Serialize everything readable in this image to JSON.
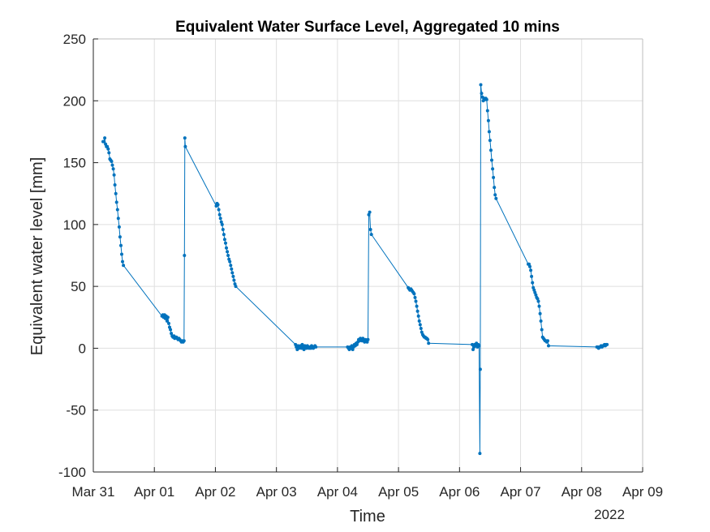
{
  "chart_data": {
    "type": "line",
    "title": "Equivalent Water Surface Level, Aggregated 10 mins",
    "xlabel": "Time",
    "ylabel": "Equivalent water level [mm]",
    "year_label": "2022",
    "xlim": [
      "2022-03-31T00:00",
      "2022-04-09T00:00"
    ],
    "ylim": [
      -100,
      250
    ],
    "x_ticks": [
      "Mar 31",
      "Apr 01",
      "Apr 02",
      "Apr 03",
      "Apr 04",
      "Apr 05",
      "Apr 06",
      "Apr 07",
      "Apr 08",
      "Apr 09"
    ],
    "y_ticks": [
      "-100",
      "-50",
      "0",
      "50",
      "100",
      "150",
      "200",
      "250"
    ],
    "grid": true,
    "series": [
      {
        "color": "#0072BD",
        "points": [
          [
            "2022-03-31T03:50",
            167
          ],
          [
            "2022-03-31T04:10",
            167
          ],
          [
            "2022-03-31T04:30",
            170
          ],
          [
            "2022-03-31T04:50",
            165
          ],
          [
            "2022-03-31T05:10",
            163
          ],
          [
            "2022-03-31T05:30",
            163
          ],
          [
            "2022-03-31T05:50",
            161
          ],
          [
            "2022-03-31T06:10",
            158
          ],
          [
            "2022-03-31T06:30",
            153
          ],
          [
            "2022-03-31T06:50",
            152
          ],
          [
            "2022-03-31T07:10",
            151
          ],
          [
            "2022-03-31T07:30",
            148
          ],
          [
            "2022-03-31T07:50",
            145
          ],
          [
            "2022-03-31T08:10",
            140
          ],
          [
            "2022-03-31T08:30",
            132
          ],
          [
            "2022-03-31T08:50",
            125
          ],
          [
            "2022-03-31T09:10",
            118
          ],
          [
            "2022-03-31T09:30",
            112
          ],
          [
            "2022-03-31T09:50",
            105
          ],
          [
            "2022-03-31T10:10",
            98
          ],
          [
            "2022-03-31T10:30",
            90
          ],
          [
            "2022-03-31T10:50",
            83
          ],
          [
            "2022-03-31T11:10",
            76
          ],
          [
            "2022-03-31T11:30",
            70
          ],
          [
            "2022-03-31T11:50",
            67
          ],
          [
            "2022-04-01T03:00",
            26
          ],
          [
            "2022-04-01T03:20",
            27
          ],
          [
            "2022-04-01T03:40",
            25
          ],
          [
            "2022-04-01T04:00",
            27
          ],
          [
            "2022-04-01T04:20",
            24
          ],
          [
            "2022-04-01T04:40",
            26
          ],
          [
            "2022-04-01T05:00",
            22
          ],
          [
            "2022-04-01T05:20",
            25
          ],
          [
            "2022-04-01T05:40",
            20
          ],
          [
            "2022-04-01T06:00",
            17
          ],
          [
            "2022-04-01T06:20",
            15
          ],
          [
            "2022-04-01T06:40",
            12
          ],
          [
            "2022-04-01T07:00",
            10
          ],
          [
            "2022-04-01T07:20",
            9
          ],
          [
            "2022-04-01T07:40",
            10
          ],
          [
            "2022-04-01T08:00",
            8
          ],
          [
            "2022-04-01T08:20",
            9
          ],
          [
            "2022-04-01T08:40",
            9
          ],
          [
            "2022-04-01T09:00",
            8
          ],
          [
            "2022-04-01T09:20",
            7
          ],
          [
            "2022-04-01T09:40",
            8
          ],
          [
            "2022-04-01T10:00",
            7
          ],
          [
            "2022-04-01T10:20",
            6
          ],
          [
            "2022-04-01T10:40",
            5
          ],
          [
            "2022-04-01T11:00",
            6
          ],
          [
            "2022-04-01T11:20",
            5
          ],
          [
            "2022-04-01T11:40",
            6
          ],
          [
            "2022-04-01T11:50",
            75
          ],
          [
            "2022-04-01T12:00",
            170
          ],
          [
            "2022-04-01T12:10",
            163
          ],
          [
            "2022-04-02T00:20",
            115
          ],
          [
            "2022-04-02T00:40",
            117
          ],
          [
            "2022-04-02T01:00",
            116
          ],
          [
            "2022-04-02T01:20",
            112
          ],
          [
            "2022-04-02T01:40",
            108
          ],
          [
            "2022-04-02T02:00",
            105
          ],
          [
            "2022-04-02T02:20",
            102
          ],
          [
            "2022-04-02T02:40",
            100
          ],
          [
            "2022-04-02T03:00",
            96
          ],
          [
            "2022-04-02T03:20",
            92
          ],
          [
            "2022-04-02T03:40",
            88
          ],
          [
            "2022-04-02T04:00",
            85
          ],
          [
            "2022-04-02T04:20",
            81
          ],
          [
            "2022-04-02T04:40",
            78
          ],
          [
            "2022-04-02T05:00",
            75
          ],
          [
            "2022-04-02T05:20",
            72
          ],
          [
            "2022-04-02T05:40",
            70
          ],
          [
            "2022-04-02T06:00",
            67
          ],
          [
            "2022-04-02T06:20",
            64
          ],
          [
            "2022-04-02T06:40",
            61
          ],
          [
            "2022-04-02T07:00",
            58
          ],
          [
            "2022-04-02T07:20",
            55
          ],
          [
            "2022-04-02T07:40",
            52
          ],
          [
            "2022-04-02T08:00",
            50
          ],
          [
            "2022-04-03T07:30",
            3
          ],
          [
            "2022-04-03T07:50",
            1
          ],
          [
            "2022-04-03T08:10",
            -1
          ],
          [
            "2022-04-03T08:30",
            2
          ],
          [
            "2022-04-03T08:50",
            0
          ],
          [
            "2022-04-03T09:10",
            1
          ],
          [
            "2022-04-03T09:30",
            2
          ],
          [
            "2022-04-03T09:50",
            0
          ],
          [
            "2022-04-03T10:10",
            3
          ],
          [
            "2022-04-03T10:30",
            1
          ],
          [
            "2022-04-03T10:50",
            -1
          ],
          [
            "2022-04-03T11:10",
            2
          ],
          [
            "2022-04-03T11:30",
            1
          ],
          [
            "2022-04-03T11:50",
            0
          ],
          [
            "2022-04-03T12:10",
            2
          ],
          [
            "2022-04-03T12:30",
            1
          ],
          [
            "2022-04-03T12:50",
            0
          ],
          [
            "2022-04-03T13:10",
            1
          ],
          [
            "2022-04-03T13:30",
            0
          ],
          [
            "2022-04-03T13:50",
            2
          ],
          [
            "2022-04-03T14:10",
            1
          ],
          [
            "2022-04-03T14:30",
            0
          ],
          [
            "2022-04-03T14:50",
            1
          ],
          [
            "2022-04-03T15:10",
            2
          ],
          [
            "2022-04-03T15:30",
            1
          ],
          [
            "2022-04-04T04:00",
            1
          ],
          [
            "2022-04-04T04:20",
            0
          ],
          [
            "2022-04-04T04:40",
            -1
          ],
          [
            "2022-04-04T05:00",
            1
          ],
          [
            "2022-04-04T05:20",
            0
          ],
          [
            "2022-04-04T05:40",
            2
          ],
          [
            "2022-04-04T06:00",
            -1
          ],
          [
            "2022-04-04T06:20",
            1
          ],
          [
            "2022-04-04T06:40",
            3
          ],
          [
            "2022-04-04T07:00",
            2
          ],
          [
            "2022-04-04T07:20",
            4
          ],
          [
            "2022-04-04T07:40",
            3
          ],
          [
            "2022-04-04T08:00",
            5
          ],
          [
            "2022-04-04T08:20",
            7
          ],
          [
            "2022-04-04T08:40",
            6
          ],
          [
            "2022-04-04T09:00",
            8
          ],
          [
            "2022-04-04T09:20",
            7
          ],
          [
            "2022-04-04T09:40",
            6
          ],
          [
            "2022-04-04T10:00",
            8
          ],
          [
            "2022-04-04T10:20",
            7
          ],
          [
            "2022-04-04T10:40",
            5
          ],
          [
            "2022-04-04T11:00",
            7
          ],
          [
            "2022-04-04T11:20",
            6
          ],
          [
            "2022-04-04T11:40",
            5
          ],
          [
            "2022-04-04T12:00",
            7
          ],
          [
            "2022-04-04T12:20",
            108
          ],
          [
            "2022-04-04T12:40",
            110
          ],
          [
            "2022-04-04T13:00",
            96
          ],
          [
            "2022-04-04T13:20",
            92
          ],
          [
            "2022-04-05T03:50",
            49
          ],
          [
            "2022-04-05T04:10",
            48
          ],
          [
            "2022-04-05T04:30",
            47
          ],
          [
            "2022-04-05T04:50",
            48
          ],
          [
            "2022-04-05T05:10",
            47
          ],
          [
            "2022-04-05T05:30",
            46
          ],
          [
            "2022-04-05T05:50",
            45
          ],
          [
            "2022-04-05T06:10",
            44
          ],
          [
            "2022-04-05T06:30",
            41
          ],
          [
            "2022-04-05T06:50",
            38
          ],
          [
            "2022-04-05T07:10",
            34
          ],
          [
            "2022-04-05T07:30",
            30
          ],
          [
            "2022-04-05T07:50",
            26
          ],
          [
            "2022-04-05T08:10",
            22
          ],
          [
            "2022-04-05T08:30",
            19
          ],
          [
            "2022-04-05T08:50",
            16
          ],
          [
            "2022-04-05T09:10",
            13
          ],
          [
            "2022-04-05T09:30",
            11
          ],
          [
            "2022-04-05T09:50",
            10
          ],
          [
            "2022-04-05T10:10",
            9
          ],
          [
            "2022-04-05T10:30",
            9
          ],
          [
            "2022-04-05T10:50",
            8
          ],
          [
            "2022-04-05T11:10",
            8
          ],
          [
            "2022-04-05T11:30",
            7
          ],
          [
            "2022-04-05T11:50",
            4
          ],
          [
            "2022-04-06T05:00",
            3
          ],
          [
            "2022-04-06T05:20",
            -1
          ],
          [
            "2022-04-06T05:40",
            1
          ],
          [
            "2022-04-06T06:00",
            3
          ],
          [
            "2022-04-06T06:20",
            2
          ],
          [
            "2022-04-06T06:40",
            4
          ],
          [
            "2022-04-06T07:00",
            1
          ],
          [
            "2022-04-06T07:20",
            3
          ],
          [
            "2022-04-06T07:40",
            2
          ],
          [
            "2022-04-06T08:00",
            -85
          ],
          [
            "2022-04-06T08:10",
            -17
          ],
          [
            "2022-04-06T08:20",
            213
          ],
          [
            "2022-04-06T08:40",
            206
          ],
          [
            "2022-04-06T09:00",
            203
          ],
          [
            "2022-04-06T09:20",
            200
          ],
          [
            "2022-04-06T09:40",
            202
          ],
          [
            "2022-04-06T10:00",
            201
          ],
          [
            "2022-04-06T10:20",
            202
          ],
          [
            "2022-04-06T10:40",
            201
          ],
          [
            "2022-04-06T11:00",
            192
          ],
          [
            "2022-04-06T11:20",
            184
          ],
          [
            "2022-04-06T11:40",
            175
          ],
          [
            "2022-04-06T12:00",
            168
          ],
          [
            "2022-04-06T12:20",
            160
          ],
          [
            "2022-04-06T12:40",
            152
          ],
          [
            "2022-04-06T13:00",
            145
          ],
          [
            "2022-04-06T13:20",
            138
          ],
          [
            "2022-04-06T13:40",
            130
          ],
          [
            "2022-04-06T14:00",
            124
          ],
          [
            "2022-04-06T14:20",
            121
          ],
          [
            "2022-04-07T03:00",
            68
          ],
          [
            "2022-04-07T03:20",
            68
          ],
          [
            "2022-04-07T03:40",
            66
          ],
          [
            "2022-04-07T04:00",
            63
          ],
          [
            "2022-04-07T04:20",
            58
          ],
          [
            "2022-04-07T04:40",
            53
          ],
          [
            "2022-04-07T05:00",
            49
          ],
          [
            "2022-04-07T05:20",
            47
          ],
          [
            "2022-04-07T05:40",
            45
          ],
          [
            "2022-04-07T06:00",
            43
          ],
          [
            "2022-04-07T06:20",
            41
          ],
          [
            "2022-04-07T06:40",
            40
          ],
          [
            "2022-04-07T07:00",
            38
          ],
          [
            "2022-04-07T07:20",
            34
          ],
          [
            "2022-04-07T07:40",
            28
          ],
          [
            "2022-04-07T08:00",
            22
          ],
          [
            "2022-04-07T08:20",
            15
          ],
          [
            "2022-04-07T08:40",
            9
          ],
          [
            "2022-04-07T09:00",
            8
          ],
          [
            "2022-04-07T09:20",
            7
          ],
          [
            "2022-04-07T09:40",
            6
          ],
          [
            "2022-04-07T10:00",
            6
          ],
          [
            "2022-04-07T10:20",
            5
          ],
          [
            "2022-04-07T10:40",
            6
          ],
          [
            "2022-04-07T11:00",
            2
          ],
          [
            "2022-04-08T06:00",
            1
          ],
          [
            "2022-04-08T06:20",
            1
          ],
          [
            "2022-04-08T06:40",
            0
          ],
          [
            "2022-04-08T07:00",
            1
          ],
          [
            "2022-04-08T07:20",
            1
          ],
          [
            "2022-04-08T07:40",
            2
          ],
          [
            "2022-04-08T08:00",
            1
          ],
          [
            "2022-04-08T08:20",
            2
          ],
          [
            "2022-04-08T08:40",
            2
          ],
          [
            "2022-04-08T09:00",
            3
          ],
          [
            "2022-04-08T09:20",
            2
          ],
          [
            "2022-04-08T09:40",
            3
          ],
          [
            "2022-04-08T10:00",
            3
          ]
        ]
      }
    ]
  }
}
